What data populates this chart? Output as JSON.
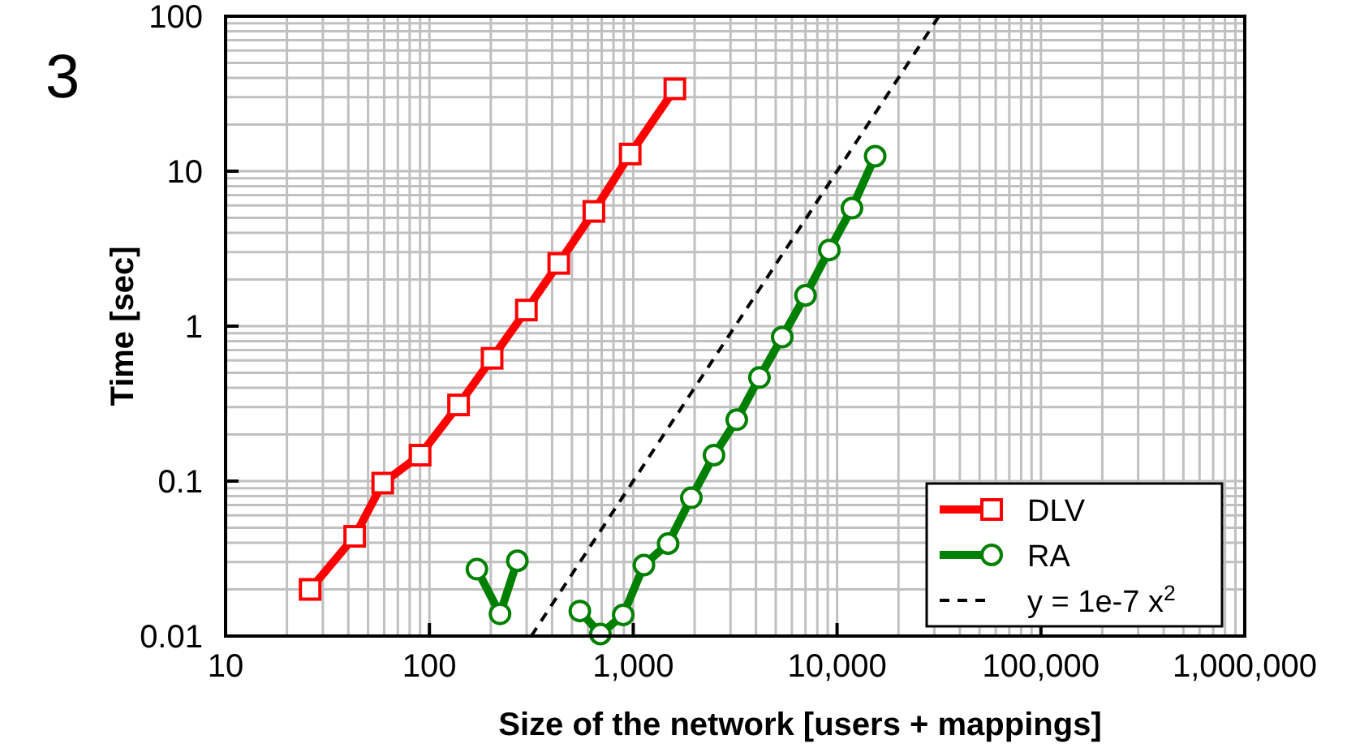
{
  "chart_data": {
    "type": "line",
    "xlabel": "Size of the network [users + mappings]",
    "ylabel": "Time [sec]",
    "annotations": [
      "3"
    ],
    "log": "xy",
    "grid": true,
    "legend": "bottom right",
    "line_style": "solid",
    "xlim": [
      10,
      1000000
    ],
    "xticks": [
      10,
      100,
      {
        "value": 1000,
        "label": "1,000"
      },
      {
        "value": 10000,
        "label": "10,000"
      },
      {
        "value": 100000,
        "label": "100,000"
      },
      {
        "value": 1000000,
        "label": "1,000,000"
      }
    ],
    "ylim": [
      0.01,
      100
    ],
    "yticks": [
      0.01,
      0.1,
      1,
      10,
      100
    ],
    "series": [
      {
        "name": "DLV",
        "color": "#ff0000",
        "marker": "square",
        "x": [
          26,
          43,
          59,
          90,
          139,
          203,
          299,
          431,
          641,
          966,
          1600
        ],
        "values": [
          0.02,
          0.044,
          0.097,
          0.147,
          0.31,
          0.62,
          1.27,
          2.54,
          5.5,
          12.9,
          34
        ]
      },
      {
        "name": "RA",
        "color": "#008000",
        "marker": "circle",
        "x": [
          171,
          222,
          270,
          400,
          547,
          690,
          893,
          1128,
          1483,
          1927,
          2490,
          3220,
          4160,
          5380,
          7000,
          9160,
          11830,
          15380
        ],
        "values": [
          0.027,
          0.0139,
          0.0306,
          null,
          0.0145,
          0.0103,
          0.0137,
          0.0287,
          0.0395,
          0.078,
          0.147,
          0.249,
          0.466,
          0.85,
          1.58,
          3.1,
          5.77,
          12.5
        ]
      },
      {
        "name": "y = 1e-7 x$^{2}$",
        "color": "#000000",
        "marker": "none",
        "line_style": "dashed",
        "x": [
          316,
          31623
        ],
        "values": [
          0.01,
          100
        ]
      }
    ]
  }
}
